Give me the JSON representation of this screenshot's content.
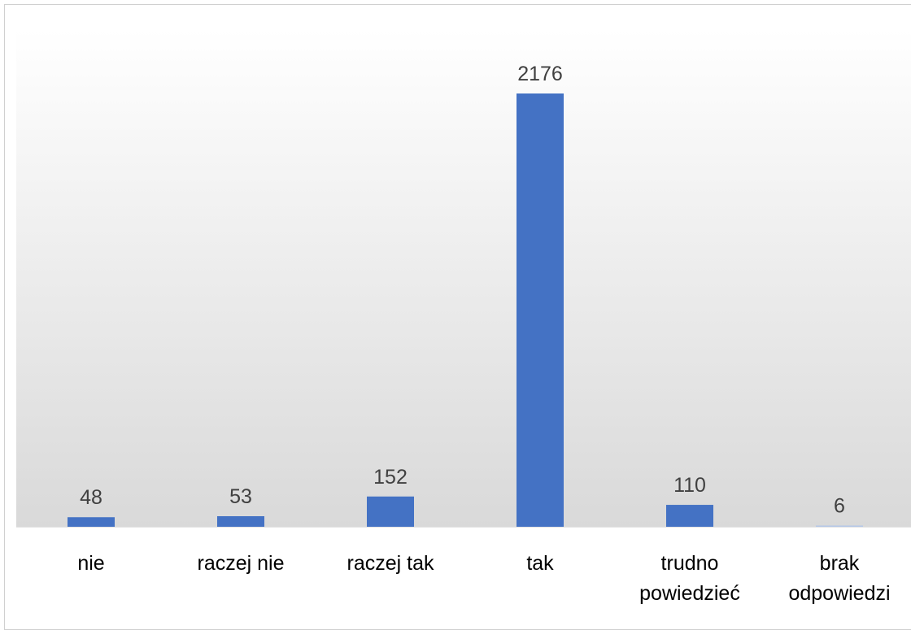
{
  "chart_data": {
    "type": "bar",
    "categories": [
      "nie",
      "raczej nie",
      "raczej tak",
      "tak",
      "trudno powiedzieć",
      "brak odpowiedzi"
    ],
    "category_lines": [
      [
        "nie"
      ],
      [
        "raczej nie"
      ],
      [
        "raczej tak"
      ],
      [
        "tak"
      ],
      [
        "trudno",
        "powiedzieć"
      ],
      [
        "brak",
        "odpowiedzi"
      ]
    ],
    "values": [
      48,
      53,
      152,
      2176,
      110,
      6
    ],
    "data_labels": [
      "48",
      "53",
      "152",
      "2176",
      "110",
      "6"
    ],
    "ylim": [
      0,
      2300
    ],
    "bar_color": "#4472C4",
    "legend": "none",
    "grid": false
  }
}
